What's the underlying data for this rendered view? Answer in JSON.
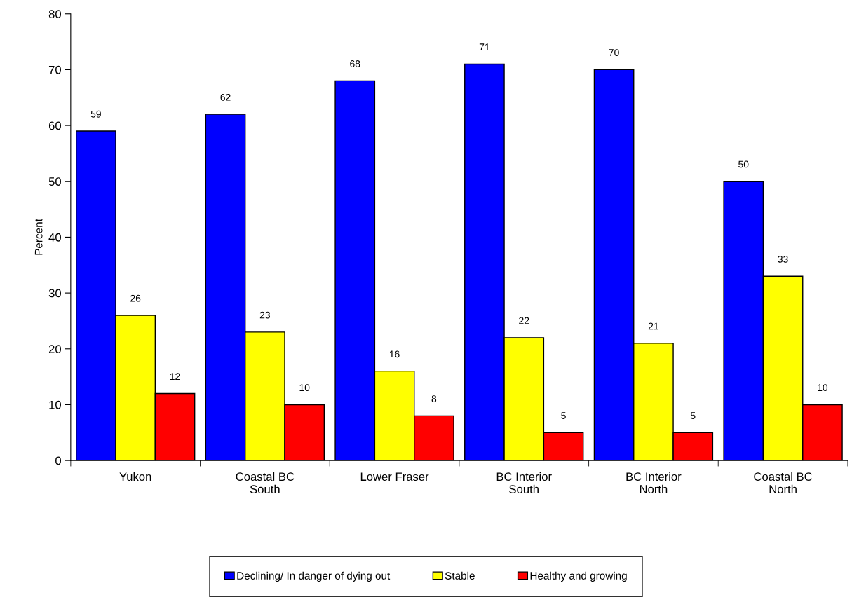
{
  "chart_data": {
    "type": "bar",
    "ylabel": "Percent",
    "categories": [
      "Yukon",
      "Coastal BC\nSouth",
      "Lower Fraser",
      "BC Interior\nSouth",
      "BC Interior\nNorth",
      "Coastal BC\nNorth"
    ],
    "series": [
      {
        "name": "Declining/ In danger of dying out",
        "color": "#0000ff",
        "values": [
          59,
          62,
          68,
          71,
          70,
          50
        ]
      },
      {
        "name": "Stable",
        "color": "#ffff00",
        "values": [
          26,
          23,
          16,
          22,
          21,
          33
        ]
      },
      {
        "name": "Healthy and growing",
        "color": "#ff0000",
        "values": [
          12,
          10,
          8,
          5,
          5,
          10
        ]
      }
    ],
    "ylim": [
      0,
      80
    ],
    "yticks": [
      0,
      10,
      20,
      30,
      40,
      50,
      60,
      70,
      80
    ],
    "grid": false,
    "data_labels": true,
    "legend": "bottom"
  }
}
